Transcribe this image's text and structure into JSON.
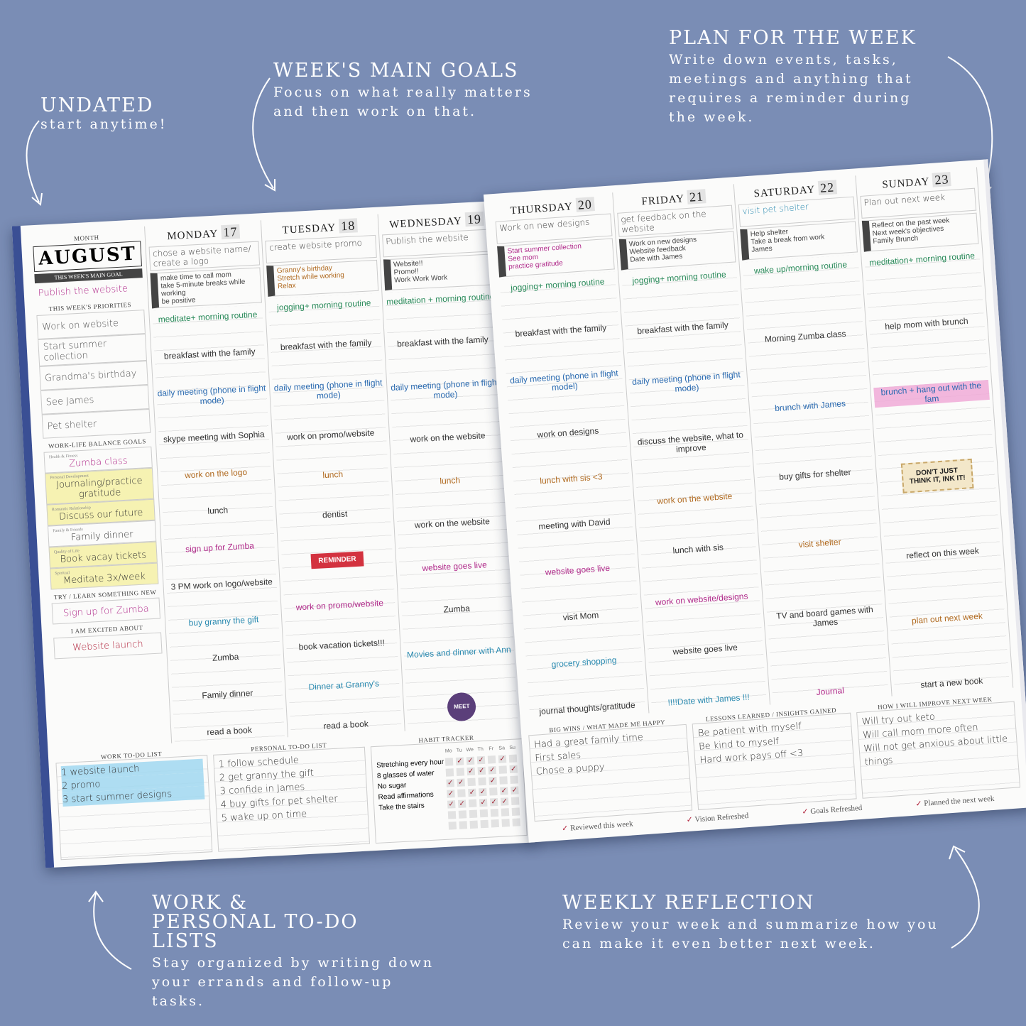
{
  "callouts": {
    "undated": {
      "title": "UNDATED",
      "text": "start anytime!"
    },
    "goals": {
      "title": "WEEK'S MAIN GOALS",
      "text": "Focus on what really matters and then work on that."
    },
    "plan": {
      "title": "PLAN FOR THE WEEK",
      "text": "Write down events, tasks, meetings and anything that requires a reminder during the week."
    },
    "todo": {
      "title": "WORK & PERSONAL TO-DO LISTS",
      "text": "Stay organized by writing down your errands and follow-up tasks."
    },
    "reflection": {
      "title": "WEEKLY REFLECTION",
      "text": "Review your week and summarize how you can make it even better next week."
    }
  },
  "colors": {
    "background": "#7a8db5",
    "cover": "#3a4f94",
    "reminder": "#d3323f",
    "meet": "#5b3f7a"
  },
  "left": {
    "month_label": "MONTH",
    "month": "AUGUST",
    "main_goal_label": "THIS WEEK'S MAIN GOAL",
    "main_goal": "Publish the website",
    "priorities_label": "THIS WEEK'S PRIORITIES",
    "priorities": [
      "Work on website",
      "Start summer collection",
      "Grandma's birthday",
      "See James",
      "Pet shelter"
    ],
    "balance_label": "WORK-LIFE BALANCE GOALS",
    "balance": [
      {
        "cat": "Health & Fitness",
        "text": "Zumba class"
      },
      {
        "cat": "Personal Development",
        "text": "Journaling/practice gratitude"
      },
      {
        "cat": "Romantic Relationship",
        "text": "Discuss our future"
      },
      {
        "cat": "Family & Friends",
        "text": "Family dinner"
      },
      {
        "cat": "Quality of Life",
        "text": "Book vacay tickets"
      },
      {
        "cat": "Spiritual",
        "text": "Meditate 3x/week"
      }
    ],
    "try_label": "TRY / LEARN SOMETHING NEW",
    "try": "Sign up for Zumba",
    "excited_label": "I AM EXCITED ABOUT",
    "excited": "Website launch",
    "work_todo_label": "WORK TO-DO LIST",
    "work_todo": [
      "1 website launch",
      "2 promo",
      "3 start summer designs"
    ],
    "personal_todo_label": "PERSONAL TO-DO LIST",
    "personal_todo": [
      "1 follow schedule",
      "2 get granny the gift",
      "3 confide in James",
      "4 buy gifts for pet shelter",
      "5 wake up on time"
    ],
    "habit": {
      "label": "HABIT TRACKER",
      "days": [
        "Mo",
        "Tu",
        "We",
        "Th",
        "Fr",
        "Sa",
        "Su"
      ],
      "rows": [
        {
          "name": "Stretching every hour",
          "done": [
            0,
            1,
            1,
            1,
            0,
            1,
            0
          ]
        },
        {
          "name": "8 glasses of water",
          "done": [
            0,
            0,
            1,
            1,
            1,
            0,
            1
          ]
        },
        {
          "name": "No sugar",
          "done": [
            1,
            1,
            0,
            0,
            1,
            0,
            0
          ]
        },
        {
          "name": "Read affirmations",
          "done": [
            1,
            0,
            1,
            1,
            0,
            1,
            1
          ]
        },
        {
          "name": "Take the stairs",
          "done": [
            1,
            1,
            0,
            1,
            1,
            1,
            0
          ]
        },
        {
          "name": "",
          "done": [
            0,
            0,
            0,
            0,
            0,
            0,
            0
          ]
        },
        {
          "name": "",
          "done": [
            0,
            0,
            0,
            0,
            0,
            0,
            0
          ]
        }
      ]
    },
    "days": [
      {
        "name": "MONDAY",
        "num": "17",
        "goal": "chose a website name/ create a logo",
        "priorities": [
          "make time to call mom",
          "take 5-minute breaks while working",
          "be positive"
        ],
        "entries": [
          "meditate+ morning routine",
          "breakfast with the family",
          "daily meeting (phone in flight mode)",
          "skype meeting with Sophia",
          "work on the logo",
          "lunch",
          "sign up for Zumba",
          "3 PM work on logo/website",
          "buy granny the gift",
          "Zumba",
          "Family dinner",
          "read a book"
        ]
      },
      {
        "name": "TUESDAY",
        "num": "18",
        "goal": "create website promo",
        "priorities": [
          "Granny's birthday",
          "Stretch while working",
          "Relax"
        ],
        "entries": [
          "jogging+ morning routine",
          "breakfast with the family",
          "daily meeting (phone in flight mode)",
          "work on promo/website",
          "lunch",
          "dentist",
          "work on promo/website",
          "book vacation tickets!!!",
          "Dinner at Granny's",
          "read a book"
        ],
        "sticker": "REMINDER"
      },
      {
        "name": "WEDNESDAY",
        "num": "19",
        "goal": "Publish the website",
        "priorities": [
          "Website!!",
          "Promo!!",
          "Work Work Work"
        ],
        "entries": [
          "meditation + morning routine",
          "breakfast with the family",
          "daily meeting (phone in flight mode)",
          "work on the website",
          "lunch",
          "work on the website",
          "website goes live",
          "Zumba",
          "Movies and dinner with Ann"
        ],
        "sticker": "MEET"
      }
    ]
  },
  "right": {
    "days": [
      {
        "name": "THURSDAY",
        "num": "20",
        "goal": "Work on new designs",
        "priorities": [
          "Start summer collection",
          "See mom",
          "practice gratitude"
        ],
        "entries": [
          "jogging+ morning routine",
          "breakfast with the family",
          "daily meeting (phone in flight model)",
          "work on designs",
          "lunch with sis <3",
          "meeting with David",
          "website goes live",
          "visit Mom",
          "grocery shopping",
          "journal thoughts/gratitude"
        ]
      },
      {
        "name": "FRIDAY",
        "num": "21",
        "goal": "get feedback on the website",
        "priorities": [
          "Work on new designs",
          "Website feedback",
          "Date with James"
        ],
        "entries": [
          "jogging+ morning routine",
          "breakfast with the family",
          "daily meeting (phone in flight mode)",
          "discuss the website, what to improve",
          "work on the website",
          "lunch with sis",
          "work on website/designs",
          "website goes live",
          "!!!!Date with James !!!"
        ]
      },
      {
        "name": "SATURDAY",
        "num": "22",
        "goal": "visit pet shelter",
        "priorities": [
          "Help shelter",
          "Take a break from work",
          "James"
        ],
        "entries": [
          "wake up/morning routine",
          "Morning Zumba class",
          "brunch with James",
          "buy gifts for shelter",
          "visit shelter",
          "TV and board games with James",
          "Journal"
        ]
      },
      {
        "name": "SUNDAY",
        "num": "23",
        "goal": "Plan out next week",
        "priorities": [
          "Reflect on the past week",
          "Next week's objectives",
          "Family Brunch"
        ],
        "entries": [
          "meditation+ morning routine",
          "help mom with brunch",
          "brunch + hang out with the fam",
          "reflect on this week",
          "plan out next week",
          "start a new book"
        ],
        "sticker": "DON'T JUST THINK IT, INK IT!"
      }
    ],
    "wins": {
      "label": "BIG WINS / WHAT MADE ME HAPPY",
      "items": [
        "Had a great family time",
        "First sales",
        "Chose a puppy"
      ]
    },
    "lessons": {
      "label": "LESSONS LEARNED / INSIGHTS GAINED",
      "items": [
        "Be patient with myself",
        "Be kind to myself",
        "Hard work pays off <3"
      ]
    },
    "improve": {
      "label": "HOW I WILL IMPROVE NEXT WEEK",
      "items": [
        "Will try out keto",
        "Will call mom more often",
        "Will not get anxious about little things"
      ]
    },
    "checks": [
      "Reviewed this week",
      "Vision Refreshed",
      "Goals Refreshed",
      "Planned the next week"
    ]
  }
}
